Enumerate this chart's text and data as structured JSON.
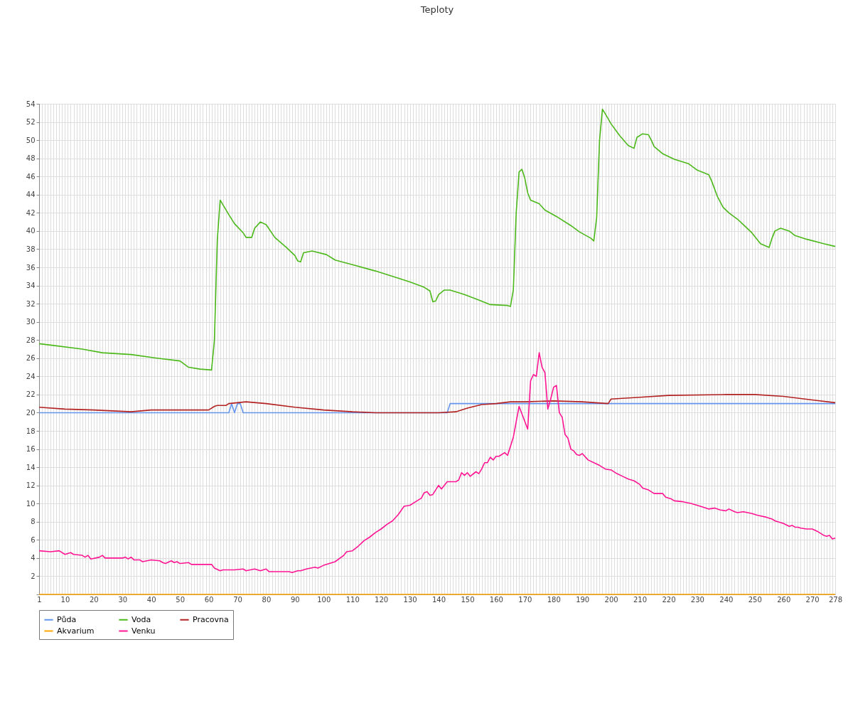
{
  "chart_data": {
    "type": "line",
    "title": "Teploty",
    "xlim": [
      1,
      278
    ],
    "xticks": [
      1,
      {
        "value": 2,
        "label": null
      },
      {
        "value": 3,
        "label": null
      },
      {
        "value": 4,
        "label": null
      },
      {
        "value": 5,
        "label": null
      },
      {
        "value": 6,
        "label": null
      },
      {
        "value": 7,
        "label": null
      },
      {
        "value": 8,
        "label": null
      },
      {
        "value": 9,
        "label": null
      },
      10,
      {
        "value": 11,
        "label": null
      },
      {
        "value": 12,
        "label": null
      },
      {
        "value": 13,
        "label": null
      },
      {
        "value": 14,
        "label": null
      },
      {
        "value": 15,
        "label": null
      },
      {
        "value": 16,
        "label": null
      },
      {
        "value": 17,
        "label": null
      },
      {
        "value": 18,
        "label": null
      },
      {
        "value": 19,
        "label": null
      },
      20,
      {
        "value": 21,
        "label": null
      },
      {
        "value": 22,
        "label": null
      },
      {
        "value": 23,
        "label": null
      },
      {
        "value": 24,
        "label": null
      },
      {
        "value": 25,
        "label": null
      },
      {
        "value": 26,
        "label": null
      },
      {
        "value": 27,
        "label": null
      },
      {
        "value": 28,
        "label": null
      },
      {
        "value": 29,
        "label": null
      },
      30,
      {
        "value": 31,
        "label": null
      },
      {
        "value": 32,
        "label": null
      },
      {
        "value": 33,
        "label": null
      },
      {
        "value": 34,
        "label": null
      },
      {
        "value": 35,
        "label": null
      },
      {
        "value": 36,
        "label": null
      },
      {
        "value": 37,
        "label": null
      },
      {
        "value": 38,
        "label": null
      },
      {
        "value": 39,
        "label": null
      },
      40,
      {
        "value": 41,
        "label": null
      },
      {
        "value": 42,
        "label": null
      },
      {
        "value": 43,
        "label": null
      },
      {
        "value": 44,
        "label": null
      },
      {
        "value": 45,
        "label": null
      },
      {
        "value": 46,
        "label": null
      },
      {
        "value": 47,
        "label": null
      },
      {
        "value": 48,
        "label": null
      },
      {
        "value": 49,
        "label": null
      },
      50,
      {
        "value": 51,
        "label": null
      },
      {
        "value": 52,
        "label": null
      },
      {
        "value": 53,
        "label": null
      },
      {
        "value": 54,
        "label": null
      },
      {
        "value": 55,
        "label": null
      },
      {
        "value": 56,
        "label": null
      },
      {
        "value": 57,
        "label": null
      },
      {
        "value": 58,
        "label": null
      },
      {
        "value": 59,
        "label": null
      },
      60,
      {
        "value": 61,
        "label": null
      },
      {
        "value": 62,
        "label": null
      },
      {
        "value": 63,
        "label": null
      },
      {
        "value": 64,
        "label": null
      },
      {
        "value": 65,
        "label": null
      },
      {
        "value": 66,
        "label": null
      },
      {
        "value": 67,
        "label": null
      },
      {
        "value": 68,
        "label": null
      },
      {
        "value": 69,
        "label": null
      },
      70,
      {
        "value": 71,
        "label": null
      },
      {
        "value": 72,
        "label": null
      },
      {
        "value": 73,
        "label": null
      },
      {
        "value": 74,
        "label": null
      },
      {
        "value": 75,
        "label": null
      },
      {
        "value": 76,
        "label": null
      },
      {
        "value": 77,
        "label": null
      },
      {
        "value": 78,
        "label": null
      },
      {
        "value": 79,
        "label": null
      },
      80,
      {
        "value": 81,
        "label": null
      },
      {
        "value": 82,
        "label": null
      },
      {
        "value": 83,
        "label": null
      },
      {
        "value": 84,
        "label": null
      },
      {
        "value": 85,
        "label": null
      },
      {
        "value": 86,
        "label": null
      },
      {
        "value": 87,
        "label": null
      },
      {
        "value": 88,
        "label": null
      },
      {
        "value": 89,
        "label": null
      },
      90,
      {
        "value": 91,
        "label": null
      },
      {
        "value": 92,
        "label": null
      },
      {
        "value": 93,
        "label": null
      },
      {
        "value": 94,
        "label": null
      },
      {
        "value": 95,
        "label": null
      },
      {
        "value": 96,
        "label": null
      },
      {
        "value": 97,
        "label": null
      },
      {
        "value": 98,
        "label": null
      },
      {
        "value": 99,
        "label": null
      },
      100,
      {
        "value": 101,
        "label": null
      },
      {
        "value": 102,
        "label": null
      },
      {
        "value": 103,
        "label": null
      },
      {
        "value": 104,
        "label": null
      },
      {
        "value": 105,
        "label": null
      },
      {
        "value": 106,
        "label": null
      },
      {
        "value": 107,
        "label": null
      },
      {
        "value": 108,
        "label": null
      },
      {
        "value": 109,
        "label": null
      },
      110,
      {
        "value": 111,
        "label": null
      },
      {
        "value": 112,
        "label": null
      },
      {
        "value": 113,
        "label": null
      },
      {
        "value": 114,
        "label": null
      },
      {
        "value": 115,
        "label": null
      },
      {
        "value": 116,
        "label": null
      },
      {
        "value": 117,
        "label": null
      },
      {
        "value": 118,
        "label": null
      },
      {
        "value": 119,
        "label": null
      },
      120,
      {
        "value": 121,
        "label": null
      },
      {
        "value": 122,
        "label": null
      },
      {
        "value": 123,
        "label": null
      },
      {
        "value": 124,
        "label": null
      },
      {
        "value": 125,
        "label": null
      },
      {
        "value": 126,
        "label": null
      },
      {
        "value": 127,
        "label": null
      },
      {
        "value": 128,
        "label": null
      },
      {
        "value": 129,
        "label": null
      },
      130,
      {
        "value": 131,
        "label": null
      },
      {
        "value": 132,
        "label": null
      },
      {
        "value": 133,
        "label": null
      },
      {
        "value": 134,
        "label": null
      },
      {
        "value": 135,
        "label": null
      },
      {
        "value": 136,
        "label": null
      },
      {
        "value": 137,
        "label": null
      },
      {
        "value": 138,
        "label": null
      },
      {
        "value": 139,
        "label": null
      },
      140,
      {
        "value": 141,
        "label": null
      },
      {
        "value": 142,
        "label": null
      },
      {
        "value": 143,
        "label": null
      },
      {
        "value": 144,
        "label": null
      },
      {
        "value": 145,
        "label": null
      },
      {
        "value": 146,
        "label": null
      },
      {
        "value": 147,
        "label": null
      },
      {
        "value": 148,
        "label": null
      },
      {
        "value": 149,
        "label": null
      },
      150,
      {
        "value": 151,
        "label": null
      },
      {
        "value": 152,
        "label": null
      },
      {
        "value": 153,
        "label": null
      },
      {
        "value": 154,
        "label": null
      },
      {
        "value": 155,
        "label": null
      },
      {
        "value": 156,
        "label": null
      },
      {
        "value": 157,
        "label": null
      },
      {
        "value": 158,
        "label": null
      },
      {
        "value": 159,
        "label": null
      },
      160,
      {
        "value": 161,
        "label": null
      },
      {
        "value": 162,
        "label": null
      },
      {
        "value": 163,
        "label": null
      },
      {
        "value": 164,
        "label": null
      },
      {
        "value": 165,
        "label": null
      },
      {
        "value": 166,
        "label": null
      },
      {
        "value": 167,
        "label": null
      },
      {
        "value": 168,
        "label": null
      },
      {
        "value": 169,
        "label": null
      },
      170,
      {
        "value": 171,
        "label": null
      },
      {
        "value": 172,
        "label": null
      },
      {
        "value": 173,
        "label": null
      },
      {
        "value": 174,
        "label": null
      },
      {
        "value": 175,
        "label": null
      },
      {
        "value": 176,
        "label": null
      },
      {
        "value": 177,
        "label": null
      },
      {
        "value": 178,
        "label": null
      },
      {
        "value": 179,
        "label": null
      },
      180,
      {
        "value": 181,
        "label": null
      },
      {
        "value": 182,
        "label": null
      },
      {
        "value": 183,
        "label": null
      },
      {
        "value": 184,
        "label": null
      },
      {
        "value": 185,
        "label": null
      },
      {
        "value": 186,
        "label": null
      },
      {
        "value": 187,
        "label": null
      },
      {
        "value": 188,
        "label": null
      },
      {
        "value": 189,
        "label": null
      },
      190,
      {
        "value": 191,
        "label": null
      },
      {
        "value": 192,
        "label": null
      },
      {
        "value": 193,
        "label": null
      },
      {
        "value": 194,
        "label": null
      },
      {
        "value": 195,
        "label": null
      },
      {
        "value": 196,
        "label": null
      },
      {
        "value": 197,
        "label": null
      },
      {
        "value": 198,
        "label": null
      },
      {
        "value": 199,
        "label": null
      },
      200,
      {
        "value": 201,
        "label": null
      },
      {
        "value": 202,
        "label": null
      },
      {
        "value": 203,
        "label": null
      },
      {
        "value": 204,
        "label": null
      },
      {
        "value": 205,
        "label": null
      },
      {
        "value": 206,
        "label": null
      },
      {
        "value": 207,
        "label": null
      },
      {
        "value": 208,
        "label": null
      },
      {
        "value": 209,
        "label": null
      },
      210,
      {
        "value": 211,
        "label": null
      },
      {
        "value": 212,
        "label": null
      },
      {
        "value": 213,
        "label": null
      },
      {
        "value": 214,
        "label": null
      },
      {
        "value": 215,
        "label": null
      },
      {
        "value": 216,
        "label": null
      },
      {
        "value": 217,
        "label": null
      },
      {
        "value": 218,
        "label": null
      },
      {
        "value": 219,
        "label": null
      },
      220,
      {
        "value": 221,
        "label": null
      },
      {
        "value": 222,
        "label": null
      },
      {
        "value": 223,
        "label": null
      },
      {
        "value": 224,
        "label": null
      },
      {
        "value": 225,
        "label": null
      },
      {
        "value": 226,
        "label": null
      },
      {
        "value": 227,
        "label": null
      },
      {
        "value": 228,
        "label": null
      },
      {
        "value": 229,
        "label": null
      },
      230,
      {
        "value": 231,
        "label": null
      },
      {
        "value": 232,
        "label": null
      },
      {
        "value": 233,
        "label": null
      },
      {
        "value": 234,
        "label": null
      },
      {
        "value": 235,
        "label": null
      },
      {
        "value": 236,
        "label": null
      },
      {
        "value": 237,
        "label": null
      },
      {
        "value": 238,
        "label": null
      },
      {
        "value": 239,
        "label": null
      },
      240,
      {
        "value": 241,
        "label": null
      },
      {
        "value": 242,
        "label": null
      },
      {
        "value": 243,
        "label": null
      },
      {
        "value": 244,
        "label": null
      },
      {
        "value": 245,
        "label": null
      },
      {
        "value": 246,
        "label": null
      },
      {
        "value": 247,
        "label": null
      },
      {
        "value": 248,
        "label": null
      },
      {
        "value": 249,
        "label": null
      },
      250,
      {
        "value": 251,
        "label": null
      },
      {
        "value": 252,
        "label": null
      },
      {
        "value": 253,
        "label": null
      },
      {
        "value": 254,
        "label": null
      },
      {
        "value": 255,
        "label": null
      },
      {
        "value": 256,
        "label": null
      },
      {
        "value": 257,
        "label": null
      },
      {
        "value": 258,
        "label": null
      },
      {
        "value": 259,
        "label": null
      },
      260,
      {
        "value": 261,
        "label": null
      },
      {
        "value": 262,
        "label": null
      },
      {
        "value": 263,
        "label": null
      },
      {
        "value": 264,
        "label": null
      },
      {
        "value": 265,
        "label": null
      },
      {
        "value": 266,
        "label": null
      },
      {
        "value": 267,
        "label": null
      },
      {
        "value": 268,
        "label": null
      },
      {
        "value": 269,
        "label": null
      },
      270,
      {
        "value": 271,
        "label": null
      },
      {
        "value": 272,
        "label": null
      },
      {
        "value": 273,
        "label": null
      },
      {
        "value": 274,
        "label": null
      },
      {
        "value": 275,
        "label": null
      },
      {
        "value": 276,
        "label": null
      },
      {
        "value": 277,
        "label": null
      },
      278
    ],
    "ylim": [
      0,
      54
    ],
    "yticks": [
      {
        "value": 0,
        "label": null
      },
      2,
      4,
      6,
      8,
      10,
      12,
      14,
      16,
      18,
      20,
      22,
      24,
      26,
      28,
      30,
      32,
      34,
      36,
      38,
      40,
      42,
      44,
      46,
      48,
      50,
      52,
      54
    ],
    "grid": true,
    "legend": "bottom",
    "series": [
      {
        "name": "Půda",
        "color": "#6495ed",
        "x": [
          1,
          67,
          68,
          69,
          70,
          71,
          72,
          143,
          144,
          278
        ],
        "values": [
          20,
          20,
          21,
          20,
          21,
          21,
          20,
          20,
          21,
          21
        ]
      },
      {
        "name": "Voda",
        "color": "#4cb81a",
        "x": [
          1,
          6,
          16,
          23,
          33,
          42,
          50,
          53,
          57,
          61,
          62,
          63,
          64,
          67,
          69,
          72,
          73,
          75,
          76,
          78,
          80,
          83,
          87,
          90,
          91,
          92,
          93,
          96,
          101,
          104,
          110,
          118,
          125,
          130,
          135,
          137,
          138,
          139,
          140,
          142,
          144,
          149,
          154,
          158,
          164,
          165,
          166,
          167,
          168,
          169,
          170,
          171,
          172,
          175,
          177,
          181,
          186,
          189,
          193,
          194,
          195,
          196,
          197,
          198,
          200,
          203,
          206,
          208,
          209,
          211,
          213,
          214,
          215,
          218,
          222,
          227,
          230,
          234,
          235,
          237,
          239,
          241,
          244,
          246,
          249,
          252,
          255,
          256,
          257,
          259,
          262,
          264,
          268,
          274,
          278
        ],
        "values": [
          27.6,
          27.4,
          27.0,
          26.6,
          26.4,
          26.0,
          25.7,
          25.0,
          24.8,
          24.7,
          28,
          39,
          43.4,
          41.8,
          40.8,
          39.8,
          39.3,
          39.3,
          40.3,
          41.0,
          40.7,
          39.3,
          38.2,
          37.3,
          36.7,
          36.6,
          37.6,
          37.8,
          37.4,
          36.8,
          36.3,
          35.6,
          34.9,
          34.4,
          33.8,
          33.4,
          32.2,
          32.3,
          33.0,
          33.5,
          33.5,
          33.0,
          32.4,
          31.9,
          31.8,
          31.7,
          33.5,
          42,
          46.5,
          46.8,
          45.8,
          44.2,
          43.4,
          43.0,
          42.3,
          41.6,
          40.6,
          39.9,
          39.2,
          38.9,
          41.5,
          50,
          53.4,
          52.9,
          51.8,
          50.5,
          49.4,
          49.1,
          50.3,
          50.7,
          50.6,
          50.0,
          49.3,
          48.5,
          47.9,
          47.4,
          46.7,
          46.2,
          45.5,
          43.8,
          42.6,
          42.0,
          41.3,
          40.7,
          39.8,
          38.6,
          38.2,
          39.2,
          40.0,
          40.3,
          40.0,
          39.5,
          39.1,
          38.6,
          38.3
        ]
      },
      {
        "name": "Pracovna",
        "color": "#b22222",
        "x": [
          1,
          10,
          20,
          33,
          40,
          57,
          60,
          62,
          63,
          66,
          67,
          73,
          80,
          90,
          100,
          110,
          118,
          140,
          146,
          150,
          155,
          160,
          165,
          170,
          180,
          190,
          199,
          200,
          210,
          220,
          240,
          250,
          260,
          270,
          278
        ],
        "values": [
          20.6,
          20.4,
          20.3,
          20.1,
          20.3,
          20.3,
          20.3,
          20.7,
          20.8,
          20.8,
          21.0,
          21.2,
          21.0,
          20.6,
          20.3,
          20.1,
          20.0,
          20.0,
          20.1,
          20.5,
          20.9,
          21.0,
          21.2,
          21.2,
          21.3,
          21.2,
          21.0,
          21.5,
          21.7,
          21.9,
          22.0,
          22.0,
          21.8,
          21.4,
          21.1
        ]
      },
      {
        "name": "Akvarium",
        "color": "#ffa500",
        "x": [
          1,
          278
        ],
        "values": [
          0,
          0
        ]
      },
      {
        "name": "Venku",
        "color": "#ff1493",
        "x": [
          1,
          5,
          8,
          10,
          12,
          13,
          16,
          17,
          18,
          19,
          22,
          23,
          24,
          30,
          31,
          32,
          33,
          34,
          36,
          37,
          40,
          43,
          44,
          45,
          47,
          48,
          49,
          50,
          53,
          54,
          57,
          60,
          61,
          62,
          64,
          65,
          69,
          72,
          73,
          76,
          78,
          80,
          81,
          86,
          88,
          89,
          91,
          92,
          94,
          97,
          98,
          100,
          102,
          104,
          107,
          108,
          110,
          112,
          114,
          116,
          118,
          120,
          122,
          124,
          126,
          128,
          130,
          132,
          134,
          135,
          136,
          137,
          138,
          140,
          141,
          143,
          146,
          147,
          148,
          149,
          150,
          151,
          153,
          154,
          155,
          156,
          157,
          158,
          159,
          160,
          161,
          163,
          164,
          165,
          166,
          167,
          168,
          171,
          172,
          173,
          174,
          175,
          176,
          177,
          178,
          179,
          180,
          181,
          182,
          183,
          184,
          185,
          186,
          187,
          188,
          189,
          190,
          192,
          194,
          196,
          198,
          200,
          202,
          204,
          206,
          208,
          210,
          211,
          213,
          215,
          218,
          219,
          221,
          222,
          225,
          228,
          230,
          231,
          233,
          234,
          236,
          238,
          240,
          241,
          243,
          244,
          246,
          249,
          251,
          254,
          256,
          257,
          259,
          260,
          262,
          263,
          264,
          265,
          266,
          268,
          270,
          272,
          274,
          275,
          276,
          277,
          278
        ],
        "values": [
          4.8,
          4.7,
          4.8,
          4.4,
          4.6,
          4.4,
          4.3,
          4.1,
          4.3,
          3.9,
          4.1,
          4.3,
          4.0,
          4.0,
          4.1,
          3.9,
          4.1,
          3.8,
          3.8,
          3.6,
          3.8,
          3.7,
          3.5,
          3.4,
          3.7,
          3.5,
          3.6,
          3.4,
          3.5,
          3.3,
          3.3,
          3.3,
          3.3,
          2.9,
          2.6,
          2.7,
          2.7,
          2.8,
          2.6,
          2.8,
          2.6,
          2.8,
          2.5,
          2.5,
          2.5,
          2.4,
          2.6,
          2.6,
          2.8,
          3.0,
          2.9,
          3.2,
          3.4,
          3.6,
          4.3,
          4.7,
          4.8,
          5.3,
          5.9,
          6.3,
          6.8,
          7.2,
          7.7,
          8.1,
          8.8,
          9.7,
          9.8,
          10.2,
          10.6,
          11.2,
          11.3,
          10.9,
          11.0,
          12.0,
          11.6,
          12.4,
          12.4,
          12.6,
          13.4,
          13.1,
          13.4,
          13.0,
          13.5,
          13.3,
          13.8,
          14.5,
          14.5,
          15.1,
          14.8,
          15.2,
          15.2,
          15.6,
          15.3,
          16.3,
          17.3,
          19,
          20.7,
          18.2,
          23.5,
          24.2,
          24.0,
          26.6,
          25,
          24.4,
          20.4,
          21.5,
          22.8,
          23.0,
          20,
          19.5,
          17.6,
          17.2,
          16.0,
          15.8,
          15.4,
          15.3,
          15.5,
          14.8,
          14.5,
          14.2,
          13.8,
          13.7,
          13.3,
          13.0,
          12.7,
          12.5,
          12.1,
          11.7,
          11.5,
          11.1,
          11.1,
          10.7,
          10.5,
          10.3,
          10.2,
          10.0,
          9.8,
          9.7,
          9.5,
          9.4,
          9.5,
          9.3,
          9.2,
          9.4,
          9.1,
          9.0,
          9.1,
          8.9,
          8.7,
          8.5,
          8.3,
          8.1,
          7.9,
          7.8,
          7.5,
          7.6,
          7.4,
          7.4,
          7.3,
          7.2,
          7.2,
          6.9,
          6.5,
          6.4,
          6.5,
          6.1,
          6.2
        ]
      }
    ]
  }
}
